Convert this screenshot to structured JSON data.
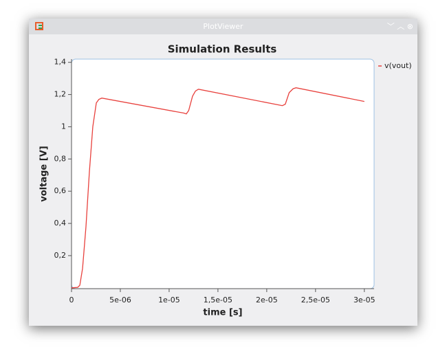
{
  "window_title": "PlotViewer",
  "chart_data": {
    "type": "line",
    "title": "Simulation Results",
    "xlabel": "time [s]",
    "ylabel": "voltage [V]",
    "x": [
      0,
      6.3e-07,
      8.5e-07,
      1.13e-06,
      1.48e-06,
      1.83e-06,
      2.18e-06,
      2.54e-06,
      2.8e-06,
      3.1e-06,
      1.15e-05,
      1.176e-05,
      1.2e-05,
      1.24e-05,
      1.27e-05,
      1.3e-05,
      2.16e-05,
      2.19e-05,
      2.23e-05,
      2.27e-05,
      2.3e-05,
      3e-05
    ],
    "series": [
      {
        "name": "v(vout)",
        "color": "#e8403c",
        "values": [
          0,
          0.003,
          0.016,
          0.12,
          0.38,
          0.72,
          1.0,
          1.148,
          1.17,
          1.178,
          1.085,
          1.08,
          1.1,
          1.19,
          1.222,
          1.233,
          1.131,
          1.14,
          1.212,
          1.236,
          1.242,
          1.157
        ]
      }
    ],
    "xlim": [
      0,
      3.1e-05
    ],
    "ylim": [
      -0.005,
      1.42
    ],
    "xticks": [
      {
        "value": 0,
        "label": "0"
      },
      {
        "value": 5e-06,
        "label": "5e-06"
      },
      {
        "value": 1e-05,
        "label": "1e-05"
      },
      {
        "value": 1.5e-05,
        "label": "1,5e-05"
      },
      {
        "value": 2e-05,
        "label": "2e-05"
      },
      {
        "value": 2.5e-05,
        "label": "2,5e-05"
      },
      {
        "value": 3e-05,
        "label": "3e-05"
      }
    ],
    "yticks": [
      {
        "value": 0.2,
        "label": "0,2"
      },
      {
        "value": 0.4,
        "label": "0,4"
      },
      {
        "value": 0.6,
        "label": "0,6"
      },
      {
        "value": 0.8,
        "label": "0,8"
      },
      1,
      {
        "value": 1.2,
        "label": "1,2"
      },
      {
        "value": 1.4,
        "label": "1,4"
      }
    ],
    "legend": "right"
  }
}
